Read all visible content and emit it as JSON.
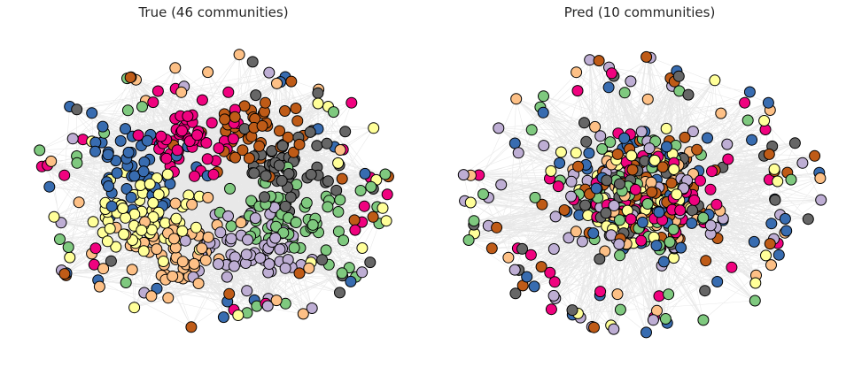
{
  "panels": [
    {
      "title": "True (46 communities)",
      "community_colors": [
        "#7fc97f",
        "#beaed4",
        "#fdc086",
        "#ffff99",
        "#386cb0",
        "#f0027f",
        "#bf5b17",
        "#666666"
      ]
    },
    {
      "title": "Pred (10 communities)",
      "community_colors": [
        "#7fc97f",
        "#beaed4",
        "#fdc086",
        "#ffff99",
        "#386cb0",
        "#f0027f",
        "#bf5b17",
        "#666666"
      ]
    }
  ],
  "style": {
    "edge_color": "#000000",
    "node_edge_color": "#000000",
    "background": "#ffffff"
  }
}
